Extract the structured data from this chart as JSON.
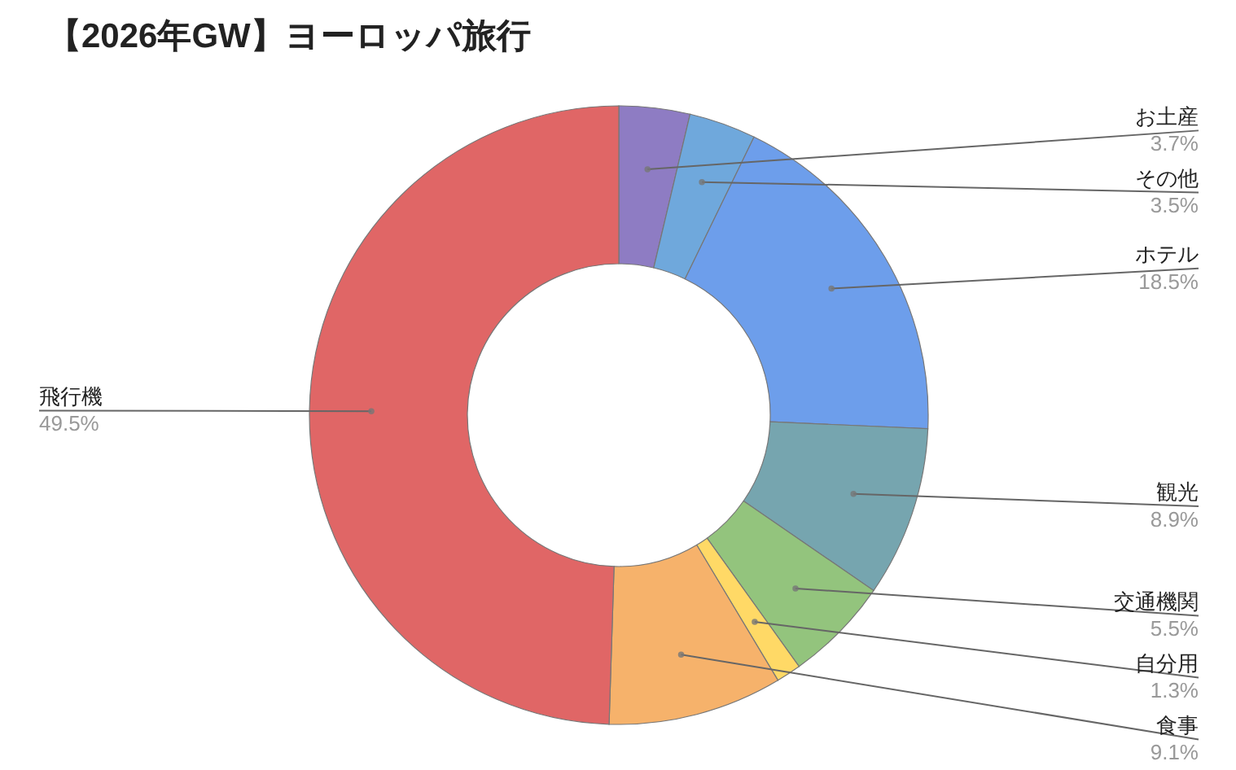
{
  "chart_data": {
    "type": "donut",
    "title": "【2026年GW】ヨーロッパ旅行",
    "categories": [
      "お土産",
      "その他",
      "ホテル",
      "観光",
      "交通機関",
      "自分用",
      "食事",
      "飛行機"
    ],
    "values": [
      3.7,
      3.5,
      18.5,
      8.9,
      5.5,
      1.3,
      9.1,
      49.5
    ],
    "colors": [
      "#8e7cc3",
      "#6fa8dc",
      "#6d9eeb",
      "#76a5af",
      "#93c47d",
      "#ffd966",
      "#f6b26b",
      "#e06666"
    ],
    "value_labels": [
      "3.7%",
      "3.5%",
      "18.5%",
      "8.9%",
      "5.5%",
      "1.3%",
      "9.1%",
      "49.5%"
    ]
  }
}
